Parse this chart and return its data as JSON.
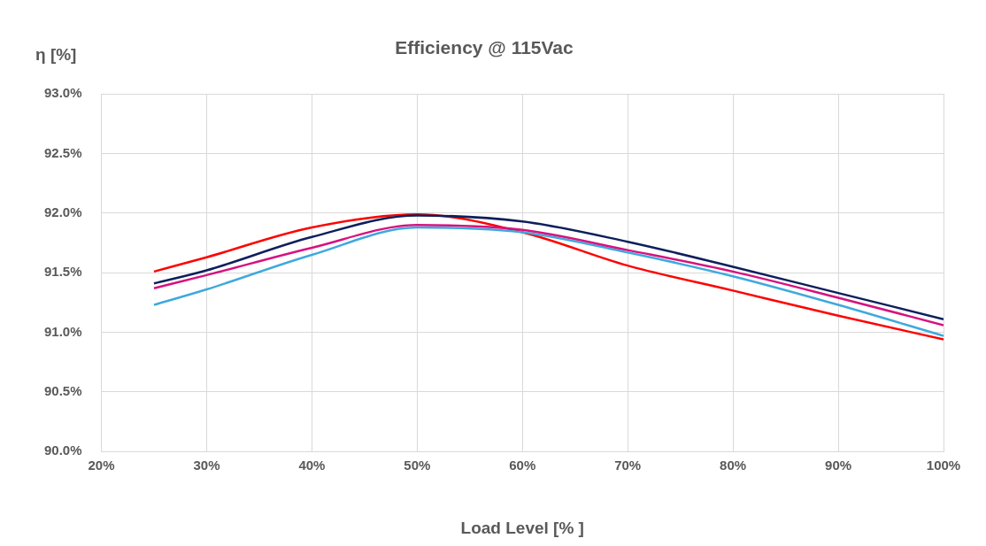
{
  "chart_data": {
    "type": "line",
    "title": "Efficiency @ 115Vac",
    "xlabel": "Load Level [% ]",
    "ylabel": "η [%]",
    "x": [
      25,
      30,
      40,
      50,
      60,
      70,
      80,
      90,
      100
    ],
    "series": [
      {
        "color": "#0d1f5c",
        "values": [
          91.41,
          91.52,
          91.8,
          91.98,
          91.93,
          91.76,
          91.55,
          91.33,
          91.11
        ]
      },
      {
        "color": "#d6127f",
        "values": [
          91.37,
          91.48,
          91.71,
          91.9,
          91.86,
          91.69,
          91.51,
          91.29,
          91.06
        ]
      },
      {
        "color": "#3fa9dd",
        "values": [
          91.23,
          91.36,
          91.65,
          91.88,
          91.84,
          91.67,
          91.47,
          91.23,
          90.97
        ]
      },
      {
        "color": "#ff0000",
        "values": [
          91.51,
          91.63,
          91.88,
          91.99,
          91.84,
          91.56,
          91.35,
          91.14,
          90.94
        ]
      }
    ],
    "xlim": [
      20,
      100
    ],
    "xticks": [
      {
        "value": 20,
        "label": "20%"
      },
      {
        "value": 30,
        "label": "30%"
      },
      {
        "value": 40,
        "label": "40%"
      },
      {
        "value": 50,
        "label": "50%"
      },
      {
        "value": 60,
        "label": "60%"
      },
      {
        "value": 70,
        "label": "70%"
      },
      {
        "value": 80,
        "label": "80%"
      },
      {
        "value": 90,
        "label": "90%"
      },
      {
        "value": 100,
        "label": "100%"
      }
    ],
    "ylim": [
      90,
      93
    ],
    "yticks": [
      {
        "value": 90,
        "label": "90.0%"
      },
      {
        "value": 90.5,
        "label": "90.5%"
      },
      {
        "value": 91,
        "label": "91.0%"
      },
      {
        "value": 91.5,
        "label": "91.5%"
      },
      {
        "value": 92,
        "label": "92.0%"
      },
      {
        "value": 92.5,
        "label": "92.5%"
      },
      {
        "value": 93,
        "label": "93.0%"
      }
    ],
    "grid": true,
    "legend": false,
    "marker": "none",
    "line_style": "solid"
  }
}
